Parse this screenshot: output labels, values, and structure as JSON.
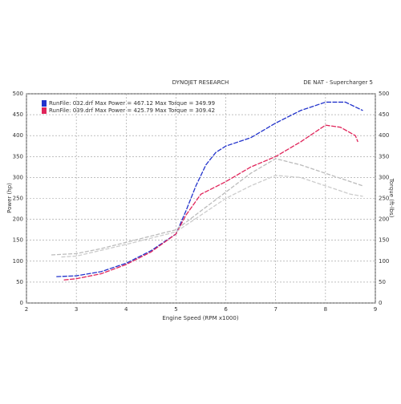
{
  "chart_data": {
    "type": "line",
    "title": "DYNOJET RESEARCH",
    "subtitle": "DE NAT - Supercharger 5",
    "xlabel": "Engine Speed (RPM x1000)",
    "ylabel": "Power (hp)",
    "y2label": "Torque (ft-lbs)",
    "xlim": [
      2,
      9
    ],
    "xticks": [
      2,
      3,
      4,
      5,
      6,
      7,
      8,
      9
    ],
    "ylim": [
      0,
      500
    ],
    "yticks": [
      0,
      50,
      100,
      150,
      200,
      250,
      300,
      350,
      400,
      450,
      500
    ],
    "y2lim": [
      0,
      500
    ],
    "y2ticks": [
      0,
      50,
      100,
      150,
      200,
      250,
      300,
      350,
      400,
      450,
      500
    ],
    "grid": true,
    "legend": "upper left",
    "series": [
      {
        "name": "RunFile: 032.drf Max Power = 467.12 Max Torque = 349.99",
        "color": "#2233cc",
        "x": [
          2.6,
          3,
          3.5,
          4,
          4.5,
          5,
          5.2,
          5.4,
          5.6,
          5.8,
          6,
          6.5,
          7,
          7.5,
          8,
          8.4,
          8.75
        ],
        "values": [
          63,
          65,
          75,
          95,
          125,
          165,
          220,
          280,
          330,
          360,
          375,
          395,
          430,
          460,
          480,
          480,
          460
        ]
      },
      {
        "name": "RunFile: 039.drf Max Power = 425.79 Max Torque = 309.42",
        "color": "#e0245a",
        "x": [
          2.75,
          3,
          3.5,
          4,
          4.5,
          5,
          5.2,
          5.5,
          6,
          6.5,
          7,
          7.5,
          8,
          8.3,
          8.6,
          8.65
        ],
        "values": [
          55,
          58,
          70,
          92,
          122,
          165,
          210,
          260,
          290,
          325,
          350,
          385,
          425,
          420,
          400,
          385
        ]
      },
      {
        "color": "#bbbbbb",
        "axis": "y2",
        "x": [
          2.5,
          3,
          3.5,
          4,
          4.5,
          5,
          5.5,
          6,
          6.5,
          7,
          7.5,
          8,
          8.5,
          8.75
        ],
        "values": [
          115,
          118,
          130,
          145,
          160,
          175,
          220,
          265,
          310,
          345,
          330,
          310,
          290,
          280
        ]
      },
      {
        "color": "#cccccc",
        "axis": "y2",
        "x": [
          2.7,
          3,
          4,
          5,
          5.5,
          6,
          6.5,
          7,
          7.5,
          8,
          8.5,
          8.75
        ],
        "values": [
          110,
          112,
          140,
          170,
          210,
          250,
          280,
          305,
          300,
          280,
          260,
          255
        ]
      }
    ]
  }
}
